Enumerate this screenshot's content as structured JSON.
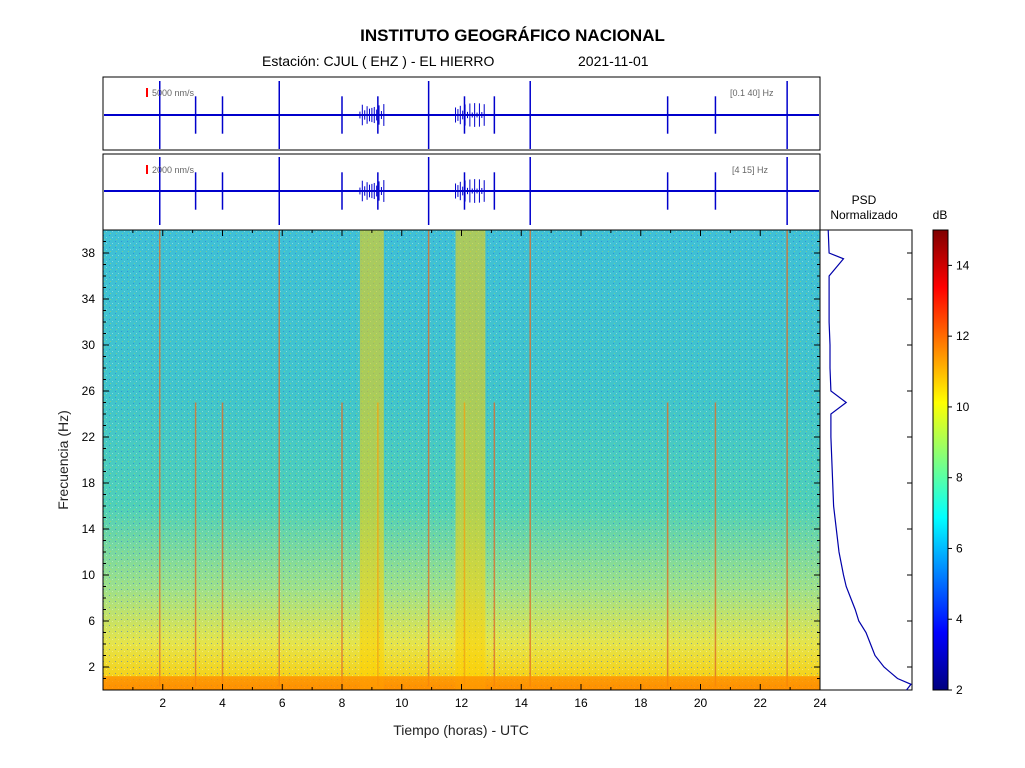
{
  "header": {
    "title": "INSTITUTO GEOGRÁFICO NACIONAL",
    "station": "Estación:  CJUL ( EHZ ) - EL HIERRO",
    "date": "2021-11-01"
  },
  "traces": [
    {
      "scale_label": "5000 nm/s",
      "band_label": "[0.1 40] Hz",
      "color": "#0000cc"
    },
    {
      "scale_label": "2000 nm/s",
      "band_label": "[4 15] Hz",
      "color": "#0000cc"
    }
  ],
  "psd_panel": {
    "label_line1": "PSD",
    "label_line2": "Normalizado"
  },
  "chart_data": {
    "type": "heatmap",
    "xlabel": "Tiempo (horas) - UTC",
    "ylabel": "Frecuencia  (Hz)",
    "xlim": [
      0,
      24
    ],
    "ylim": [
      0,
      40
    ],
    "xticks": [
      "2",
      "4",
      "6",
      "8",
      "10",
      "12",
      "14",
      "16",
      "18",
      "20",
      "22",
      "24"
    ],
    "yticks": [
      "2",
      "6",
      "10",
      "14",
      "18",
      "22",
      "26",
      "30",
      "34",
      "38"
    ],
    "events_hours": [
      1.9,
      3.1,
      4.0,
      5.9,
      8.0,
      9.2,
      10.9,
      12.1,
      13.1,
      14.3,
      18.9,
      20.5,
      22.9
    ],
    "psd_normalized": {
      "freq_hz": [
        0,
        0.5,
        1,
        2,
        3,
        4,
        5,
        6,
        7,
        8,
        9,
        10,
        12,
        14,
        16,
        18,
        20,
        22,
        24,
        25,
        26,
        28,
        30,
        32,
        34,
        36,
        37.5,
        38,
        40
      ],
      "value": [
        0.95,
        1.0,
        0.85,
        0.7,
        0.6,
        0.55,
        0.5,
        0.42,
        0.38,
        0.33,
        0.28,
        0.25,
        0.2,
        0.17,
        0.14,
        0.13,
        0.12,
        0.11,
        0.11,
        0.28,
        0.11,
        0.1,
        0.1,
        0.09,
        0.09,
        0.09,
        0.25,
        0.09,
        0.08
      ]
    },
    "colorbar": {
      "label": "dB",
      "range": [
        2,
        15
      ],
      "ticks": [
        "2",
        "4",
        "6",
        "8",
        "10",
        "12",
        "14"
      ],
      "colors": [
        "#00007f",
        "#0000ff",
        "#007fff",
        "#00ffff",
        "#7fff7f",
        "#ffff00",
        "#ff7f00",
        "#ff0000",
        "#7f0000"
      ]
    }
  }
}
